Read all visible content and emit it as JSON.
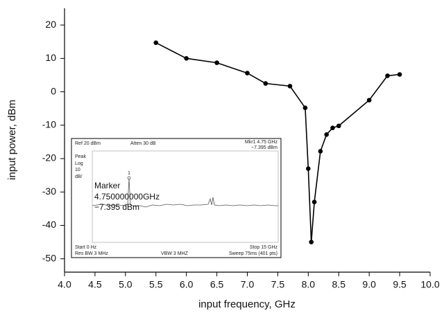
{
  "chart_data": {
    "type": "line",
    "x_label": "input frequency, GHz",
    "y_label": "input power, dBm",
    "x": [
      5.5,
      6.0,
      6.5,
      7.0,
      7.3,
      7.7,
      7.95,
      8.0,
      8.05,
      8.1,
      8.2,
      8.3,
      8.4,
      8.5,
      9.0,
      9.3,
      9.5
    ],
    "series": [
      {
        "color": "#000000",
        "values": [
          14.7,
          10,
          8.7,
          5.6,
          2.5,
          1.7,
          -4.8,
          -23,
          -45,
          -33,
          -17.8,
          -12.8,
          -10.8,
          -10.2,
          -2.5,
          4.8,
          5.2
        ]
      }
    ],
    "xlim": [
      4,
      10
    ],
    "xticks": [
      {
        "value": 4,
        "label": "4.0"
      },
      4.5,
      {
        "value": 5,
        "label": "5.0"
      },
      5.5,
      {
        "value": 6,
        "label": "6.0"
      },
      6.5,
      {
        "value": 7,
        "label": "7.0"
      },
      7.5,
      {
        "value": 8,
        "label": "8.0"
      },
      8.5,
      {
        "value": 9,
        "label": "9.0"
      },
      9.5,
      {
        "value": 10,
        "label": "10.0"
      }
    ],
    "ylim": [
      -54,
      25
    ],
    "yticks": [
      20,
      10,
      0,
      -10,
      -20,
      -30,
      -40,
      -50
    ],
    "inset": {
      "ref": "Ref 20 dBm",
      "atten": "Atten 30 dB",
      "mkr": "Mkr1 4.75 GHz",
      "mkr_value": "−7.395 dBm",
      "mode": [
        "Peak",
        "Log",
        "10",
        "dB/"
      ],
      "marker_title": "Marker",
      "marker_freq": "4.750000000GHz",
      "marker_value": "−7.395 dBm",
      "marker_id": "1",
      "start": "Start 0 Hz",
      "stop": "Stop 15 GHz",
      "res_bw": "Res BW 3 MHz",
      "vbw": "VBW 3 MHZ",
      "sweep": "Sweep 75ms (401 pts)"
    }
  }
}
